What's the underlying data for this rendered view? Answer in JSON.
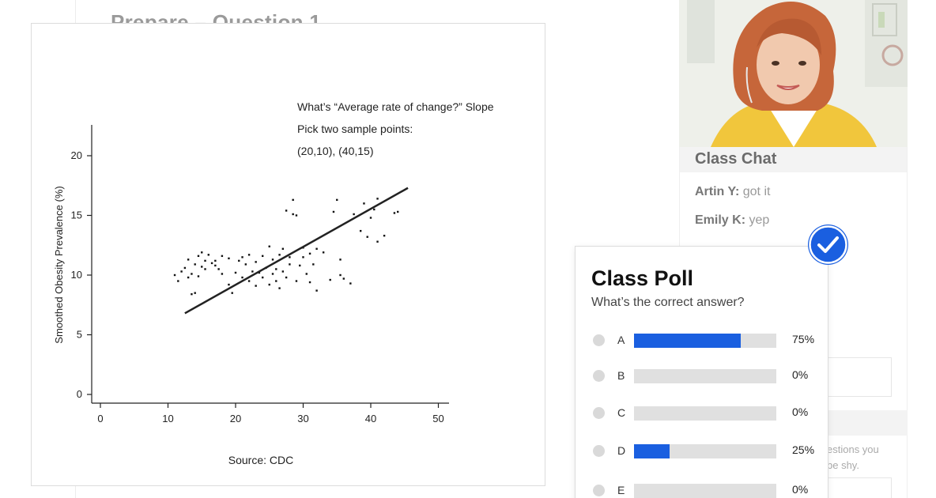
{
  "background": {
    "title": "Prepare – Question 1"
  },
  "chart_data": {
    "type": "scatter",
    "xlabel": "",
    "ylabel": "Smoothed Obesity Prevalence (%)",
    "source": "Source: CDC",
    "xlim": [
      0,
      50
    ],
    "ylim": [
      0,
      22
    ],
    "xticks": [
      0,
      10,
      20,
      30,
      40,
      50
    ],
    "yticks": [
      0,
      5,
      10,
      15,
      20
    ],
    "annotations": [
      "What’s “Average rate of change?” Slope",
      "Pick two sample points:",
      "(20,10), (40,15)"
    ],
    "trendline": {
      "x": [
        12.5,
        45.5
      ],
      "y": [
        6.8,
        17.3
      ]
    },
    "points": [
      [
        11,
        10
      ],
      [
        11.5,
        9.5
      ],
      [
        12,
        10.3
      ],
      [
        12.5,
        10.6
      ],
      [
        13,
        11.3
      ],
      [
        13,
        9.8
      ],
      [
        13.5,
        10.1
      ],
      [
        13.5,
        8.4
      ],
      [
        14,
        8.5
      ],
      [
        14,
        10.9
      ],
      [
        14.5,
        11.6
      ],
      [
        14.5,
        9.9
      ],
      [
        15,
        10.7
      ],
      [
        15,
        11.9
      ],
      [
        15.5,
        11.2
      ],
      [
        15.5,
        10.5
      ],
      [
        16,
        11.7
      ],
      [
        16.5,
        11
      ],
      [
        17,
        10.8
      ],
      [
        17,
        11.2
      ],
      [
        17.5,
        10.5
      ],
      [
        18,
        10.1
      ],
      [
        18,
        11.6
      ],
      [
        19,
        9.2
      ],
      [
        19,
        11.4
      ],
      [
        19.5,
        8.5
      ],
      [
        20,
        10.2
      ],
      [
        20.5,
        11.2
      ],
      [
        21,
        11.5
      ],
      [
        21,
        9.8
      ],
      [
        21.5,
        10.9
      ],
      [
        22,
        9.5
      ],
      [
        22,
        11.7
      ],
      [
        22.5,
        10.3
      ],
      [
        23,
        9.1
      ],
      [
        23,
        11.1
      ],
      [
        23.5,
        10.2
      ],
      [
        24,
        9.8
      ],
      [
        24,
        11.6
      ],
      [
        24.5,
        10.6
      ],
      [
        25,
        9.2
      ],
      [
        25,
        12.4
      ],
      [
        25.5,
        10.1
      ],
      [
        25.5,
        11.3
      ],
      [
        26,
        9.5
      ],
      [
        26,
        10.5
      ],
      [
        26.5,
        11.7
      ],
      [
        26.5,
        8.9
      ],
      [
        27,
        10.3
      ],
      [
        27,
        12.2
      ],
      [
        27.5,
        9.8
      ],
      [
        27.5,
        15.4
      ],
      [
        28,
        10.9
      ],
      [
        28,
        11.5
      ],
      [
        28.5,
        15.1
      ],
      [
        28.5,
        16.3
      ],
      [
        29,
        9.5
      ],
      [
        29,
        15
      ],
      [
        29.5,
        10.8
      ],
      [
        30,
        11.5
      ],
      [
        30,
        12.3
      ],
      [
        30.5,
        10.1
      ],
      [
        31,
        11.8
      ],
      [
        31,
        9.4
      ],
      [
        31.5,
        10.9
      ],
      [
        32,
        8.7
      ],
      [
        32,
        12.2
      ],
      [
        33,
        11.9
      ],
      [
        34,
        9.6
      ],
      [
        34.5,
        15.3
      ],
      [
        35,
        16.3
      ],
      [
        35.5,
        11.3
      ],
      [
        35.5,
        10
      ],
      [
        36,
        9.7
      ],
      [
        37,
        9.3
      ],
      [
        37.5,
        15.1
      ],
      [
        38.5,
        13.7
      ],
      [
        39,
        16
      ],
      [
        39.5,
        13.2
      ],
      [
        40,
        14.8
      ],
      [
        40.5,
        15.5
      ],
      [
        41,
        12.8
      ],
      [
        41,
        16.4
      ],
      [
        42,
        13.3
      ],
      [
        43.5,
        15.2
      ],
      [
        44,
        15.3
      ]
    ]
  },
  "video": {
    "alt": "Instructor webcam"
  },
  "chat": {
    "title": "Class Chat",
    "messages": [
      {
        "name": "Artin Y:",
        "text": "got it"
      },
      {
        "name": "Emily K:",
        "text": "yep"
      }
    ],
    "hint_lines": [
      "estions you",
      "be shy."
    ]
  },
  "poll": {
    "title": "Class Poll",
    "question": "What’s the correct answer?",
    "accent": "#1a5fe0",
    "options": [
      {
        "letter": "A",
        "label": "75%",
        "fraction": 0.75
      },
      {
        "letter": "B",
        "label": "0%",
        "fraction": 0
      },
      {
        "letter": "C",
        "label": "0%",
        "fraction": 0
      },
      {
        "letter": "D",
        "label": "25%",
        "fraction": 0.25
      },
      {
        "letter": "E",
        "label": "0%",
        "fraction": 0
      }
    ]
  },
  "icons": {
    "check": "check-circle-icon"
  }
}
